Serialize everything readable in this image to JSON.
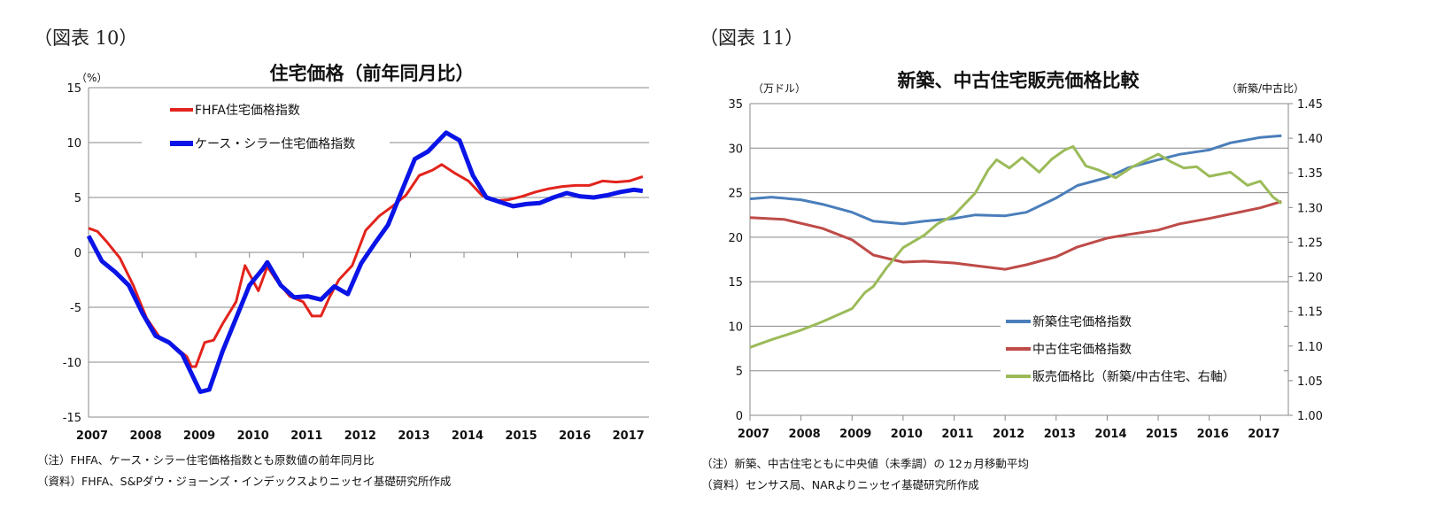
{
  "figures": [
    {
      "label": "（図表 10）",
      "notes": [
        "（注）FHFA、ケース・シラー住宅価格指数とも原数値の前年同月比",
        "（資料）FHFA、S&Pダウ・ジョーンズ・インデックスよりニッセイ基礎研究所作成"
      ]
    },
    {
      "label": "（図表 11）",
      "notes": [
        "（注）新築、中古住宅ともに中央値（未季調）の 12ヵ月移動平均",
        "（資料）センサス局、NARよりニッセイ基礎研究所作成"
      ]
    }
  ],
  "chart_data": [
    {
      "type": "line",
      "title": "住宅価格（前年同月比）",
      "ylabel": "（%）",
      "ylim": [
        -15,
        15
      ],
      "yticks": [
        "15",
        "10",
        "5",
        "0",
        "-5",
        "-10",
        "-15"
      ],
      "xticks": [
        "2007",
        "2008",
        "2009",
        "2010",
        "2011",
        "2012",
        "2013",
        "2014",
        "2015",
        "2016",
        "2017"
      ],
      "grid": true,
      "legend": "top-left",
      "series": [
        {
          "name": "FHFA住宅価格指数",
          "color": "#e3231c",
          "points": [
            [
              "2007-01",
              2.2
            ],
            [
              "2007-03",
              1.9
            ],
            [
              "2007-05",
              1.0
            ],
            [
              "2007-08",
              -0.5
            ],
            [
              "2007-11",
              -3.0
            ],
            [
              "2008-02",
              -6.0
            ],
            [
              "2008-05",
              -7.8
            ],
            [
              "2008-08",
              -8.5
            ],
            [
              "2008-11",
              -9.5
            ],
            [
              "2008-12",
              -10.4
            ],
            [
              "2009-01",
              -10.4
            ],
            [
              "2009-03",
              -8.2
            ],
            [
              "2009-05",
              -8.0
            ],
            [
              "2009-07",
              -6.5
            ],
            [
              "2009-10",
              -4.5
            ],
            [
              "2009-12",
              -1.2
            ],
            [
              "2010-03",
              -3.5
            ],
            [
              "2010-05",
              -1.3
            ],
            [
              "2010-07",
              -2.5
            ],
            [
              "2010-10",
              -4.0
            ],
            [
              "2011-01",
              -4.5
            ],
            [
              "2011-03",
              -5.8
            ],
            [
              "2011-05",
              -5.8
            ],
            [
              "2011-07",
              -4.0
            ],
            [
              "2011-09",
              -2.5
            ],
            [
              "2011-12",
              -1.2
            ],
            [
              "2012-03",
              2.0
            ],
            [
              "2012-06",
              3.3
            ],
            [
              "2012-09",
              4.2
            ],
            [
              "2012-12",
              5.2
            ],
            [
              "2013-03",
              7.0
            ],
            [
              "2013-06",
              7.5
            ],
            [
              "2013-08",
              8.0
            ],
            [
              "2013-11",
              7.2
            ],
            [
              "2014-02",
              6.5
            ],
            [
              "2014-05",
              5.2
            ],
            [
              "2014-08",
              4.7
            ],
            [
              "2014-11",
              4.8
            ],
            [
              "2015-02",
              5.1
            ],
            [
              "2015-05",
              5.5
            ],
            [
              "2015-08",
              5.8
            ],
            [
              "2015-11",
              6.0
            ],
            [
              "2016-02",
              6.1
            ],
            [
              "2016-05",
              6.1
            ],
            [
              "2016-08",
              6.5
            ],
            [
              "2016-11",
              6.4
            ],
            [
              "2017-02",
              6.5
            ],
            [
              "2017-05",
              6.9
            ]
          ]
        },
        {
          "name": "ケース・シラー住宅価格指数",
          "color": "#0a14e6",
          "points": [
            [
              "2007-01",
              1.5
            ],
            [
              "2007-04",
              -0.8
            ],
            [
              "2007-07",
              -1.8
            ],
            [
              "2007-10",
              -3.0
            ],
            [
              "2008-01",
              -5.5
            ],
            [
              "2008-04",
              -7.6
            ],
            [
              "2008-07",
              -8.2
            ],
            [
              "2008-10",
              -9.3
            ],
            [
              "2008-12",
              -11.0
            ],
            [
              "2009-02",
              -12.7
            ],
            [
              "2009-04",
              -12.5
            ],
            [
              "2009-07",
              -9.0
            ],
            [
              "2009-10",
              -6.0
            ],
            [
              "2010-01",
              -3.0
            ],
            [
              "2010-04",
              -1.5
            ],
            [
              "2010-05",
              -0.9
            ],
            [
              "2010-08",
              -3.0
            ],
            [
              "2010-11",
              -4.1
            ],
            [
              "2011-02",
              -4.0
            ],
            [
              "2011-05",
              -4.3
            ],
            [
              "2011-08",
              -3.1
            ],
            [
              "2011-11",
              -3.8
            ],
            [
              "2012-02",
              -1.0
            ],
            [
              "2012-05",
              0.8
            ],
            [
              "2012-08",
              2.5
            ],
            [
              "2012-11",
              5.5
            ],
            [
              "2013-02",
              8.5
            ],
            [
              "2013-05",
              9.2
            ],
            [
              "2013-09",
              10.9
            ],
            [
              "2013-12",
              10.2
            ],
            [
              "2014-03",
              7.0
            ],
            [
              "2014-06",
              5.0
            ],
            [
              "2014-09",
              4.6
            ],
            [
              "2014-12",
              4.2
            ],
            [
              "2015-03",
              4.4
            ],
            [
              "2015-06",
              4.5
            ],
            [
              "2015-09",
              5.0
            ],
            [
              "2015-12",
              5.4
            ],
            [
              "2016-03",
              5.1
            ],
            [
              "2016-06",
              5.0
            ],
            [
              "2016-09",
              5.2
            ],
            [
              "2016-12",
              5.5
            ],
            [
              "2017-03",
              5.7
            ],
            [
              "2017-05",
              5.6
            ]
          ]
        }
      ]
    },
    {
      "type": "line",
      "title": "新築、中古住宅販売価格比較",
      "ylabel": "（万ドル）",
      "y2label": "（新築/中古比）",
      "ylim": [
        0,
        35
      ],
      "y2lim": [
        1.0,
        1.45
      ],
      "yticks": [
        "35",
        "30",
        "25",
        "20",
        "15",
        "10",
        "5",
        "0"
      ],
      "y2ticks": [
        "1.45",
        "1.40",
        "1.35",
        "1.30",
        "1.25",
        "1.20",
        "1.15",
        "1.10",
        "1.05",
        "1.00"
      ],
      "xticks": [
        "2007",
        "2008",
        "2009",
        "2010",
        "2011",
        "2012",
        "2013",
        "2014",
        "2015",
        "2016",
        "2017"
      ],
      "grid": true,
      "legend": "bottom-right",
      "series": [
        {
          "name": "新築住宅価格指数",
          "color": "#4a7ebb",
          "axis": "left",
          "points": [
            [
              "2007-01",
              24.3
            ],
            [
              "2007-06",
              24.5
            ],
            [
              "2008-01",
              24.2
            ],
            [
              "2008-06",
              23.7
            ],
            [
              "2009-01",
              22.8
            ],
            [
              "2009-06",
              21.8
            ],
            [
              "2010-01",
              21.5
            ],
            [
              "2010-06",
              21.8
            ],
            [
              "2011-01",
              22.1
            ],
            [
              "2011-06",
              22.5
            ],
            [
              "2012-01",
              22.4
            ],
            [
              "2012-06",
              22.8
            ],
            [
              "2013-01",
              24.4
            ],
            [
              "2013-06",
              25.8
            ],
            [
              "2014-01",
              26.7
            ],
            [
              "2014-06",
              27.8
            ],
            [
              "2015-01",
              28.7
            ],
            [
              "2015-06",
              29.3
            ],
            [
              "2016-01",
              29.8
            ],
            [
              "2016-06",
              30.6
            ],
            [
              "2017-01",
              31.2
            ],
            [
              "2017-06",
              31.4
            ]
          ]
        },
        {
          "name": "中古住宅価格指数",
          "color": "#be4b48",
          "axis": "left",
          "points": [
            [
              "2007-01",
              22.2
            ],
            [
              "2007-09",
              22.0
            ],
            [
              "2008-06",
              21.0
            ],
            [
              "2009-01",
              19.7
            ],
            [
              "2009-06",
              18.0
            ],
            [
              "2010-01",
              17.2
            ],
            [
              "2010-06",
              17.3
            ],
            [
              "2011-01",
              17.1
            ],
            [
              "2011-06",
              16.8
            ],
            [
              "2012-01",
              16.4
            ],
            [
              "2012-06",
              16.9
            ],
            [
              "2013-01",
              17.8
            ],
            [
              "2013-06",
              18.9
            ],
            [
              "2014-01",
              19.9
            ],
            [
              "2014-06",
              20.3
            ],
            [
              "2015-01",
              20.8
            ],
            [
              "2015-06",
              21.5
            ],
            [
              "2016-01",
              22.1
            ],
            [
              "2016-06",
              22.6
            ],
            [
              "2017-01",
              23.3
            ],
            [
              "2017-06",
              24.0
            ]
          ]
        },
        {
          "name": "販売価格比（新築/中古住宅、右軸）",
          "color": "#9bbb59",
          "axis": "right",
          "points": [
            [
              "2007-01",
              1.098
            ],
            [
              "2007-06",
              1.109
            ],
            [
              "2008-01",
              1.123
            ],
            [
              "2008-06",
              1.135
            ],
            [
              "2009-01",
              1.154
            ],
            [
              "2009-04",
              1.177
            ],
            [
              "2009-06",
              1.186
            ],
            [
              "2009-09",
              1.212
            ],
            [
              "2010-01",
              1.242
            ],
            [
              "2010-06",
              1.26
            ],
            [
              "2010-09",
              1.276
            ],
            [
              "2011-01",
              1.289
            ],
            [
              "2011-06",
              1.321
            ],
            [
              "2011-09",
              1.354
            ],
            [
              "2011-11",
              1.369
            ],
            [
              "2012-02",
              1.357
            ],
            [
              "2012-05",
              1.372
            ],
            [
              "2012-09",
              1.351
            ],
            [
              "2012-12",
              1.37
            ],
            [
              "2013-03",
              1.383
            ],
            [
              "2013-05",
              1.388
            ],
            [
              "2013-08",
              1.36
            ],
            [
              "2013-11",
              1.354
            ],
            [
              "2014-03",
              1.343
            ],
            [
              "2014-07",
              1.359
            ],
            [
              "2015-01",
              1.377
            ],
            [
              "2015-04",
              1.366
            ],
            [
              "2015-07",
              1.357
            ],
            [
              "2015-10",
              1.359
            ],
            [
              "2016-01",
              1.345
            ],
            [
              "2016-06",
              1.351
            ],
            [
              "2016-10",
              1.332
            ],
            [
              "2017-01",
              1.338
            ],
            [
              "2017-04",
              1.315
            ],
            [
              "2017-06",
              1.306
            ]
          ]
        }
      ]
    }
  ]
}
